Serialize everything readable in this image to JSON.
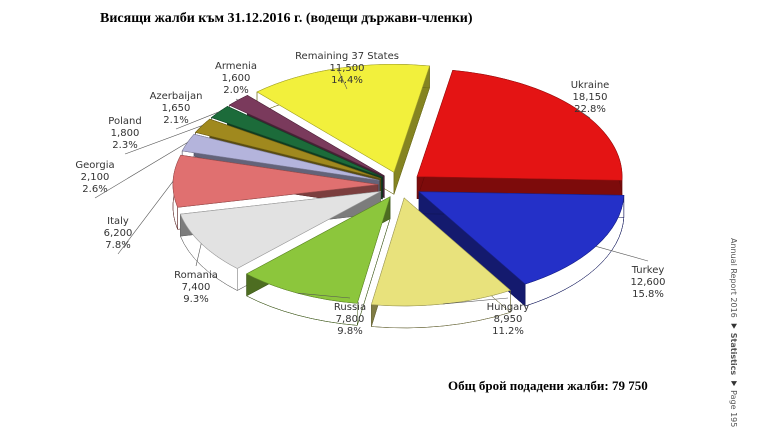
{
  "chart_data": {
    "type": "pie",
    "title": "Висящи жалби към 31.12.2016 г. (водещи държави-членки)",
    "categories": [
      "Ukraine",
      "Turkey",
      "Hungary",
      "Russia",
      "Romania",
      "Italy",
      "Georgia",
      "Poland",
      "Azerbaijan",
      "Armenia",
      "Remaining 37 States"
    ],
    "values": [
      18150,
      12600,
      8950,
      7800,
      7400,
      6200,
      2100,
      1800,
      1650,
      1600,
      11500
    ],
    "value_labels": [
      "18,150",
      "12,600",
      "8,950",
      "7,800",
      "7,400",
      "6,200",
      "2,100",
      "1,800",
      "1,650",
      "1,600",
      "11,500"
    ],
    "percent_labels": [
      "22.8%",
      "15.8%",
      "11.2%",
      "9.8%",
      "9.3%",
      "7.8%",
      "2.6%",
      "2.3%",
      "2.1%",
      "2.0%",
      "14.4%"
    ],
    "colors": [
      "#e41414",
      "#2430c8",
      "#e8e27c",
      "#8cc63c",
      "#e2e2e2",
      "#e07070",
      "#b4b4dc",
      "#a0891e",
      "#1c6b3a",
      "#7a3a5c",
      "#f2f03c"
    ],
    "total_note": "Общ брой подадени жалби: 79 750",
    "side_text": [
      "Annual Report 2016",
      "Statistics",
      "Page 195"
    ]
  }
}
